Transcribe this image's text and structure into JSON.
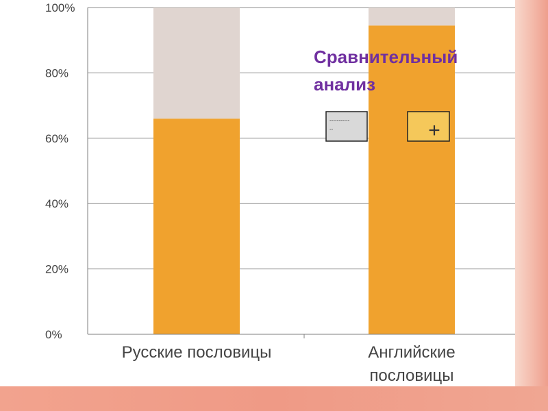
{
  "chart_data": {
    "type": "bar",
    "stacked": true,
    "categories": [
      "Русские пословицы",
      "Английские пословицы"
    ],
    "category_lines": [
      [
        "Русские пословицы"
      ],
      [
        "Английские",
        "пословицы"
      ]
    ],
    "series": [
      {
        "name": "+",
        "values": [
          66,
          94.5
        ],
        "color": "#f0a22e"
      },
      {
        "name": "-------------",
        "values": [
          34,
          5.5
        ],
        "color": "#e0d5d0"
      }
    ],
    "title": [
      "Сравнительный",
      "анализ"
    ],
    "ylim": [
      0,
      100
    ],
    "yticks": [
      {
        "value": 0,
        "label": "0%"
      },
      {
        "value": 20,
        "label": "20%"
      },
      {
        "value": 40,
        "label": "40%"
      },
      {
        "value": 60,
        "label": "60%"
      },
      {
        "value": 80,
        "label": "80%"
      },
      {
        "value": 100,
        "label": "100%"
      }
    ],
    "grid": true,
    "legend_placement": "right",
    "legend": [
      {
        "label": "-------------",
        "color": "#d9d9d9"
      },
      {
        "label": "+",
        "color": "#f5c85a"
      }
    ]
  },
  "colors": {
    "title": "#7030a0",
    "grid": "#8c8c8c",
    "axis": "#7f7f7f"
  }
}
